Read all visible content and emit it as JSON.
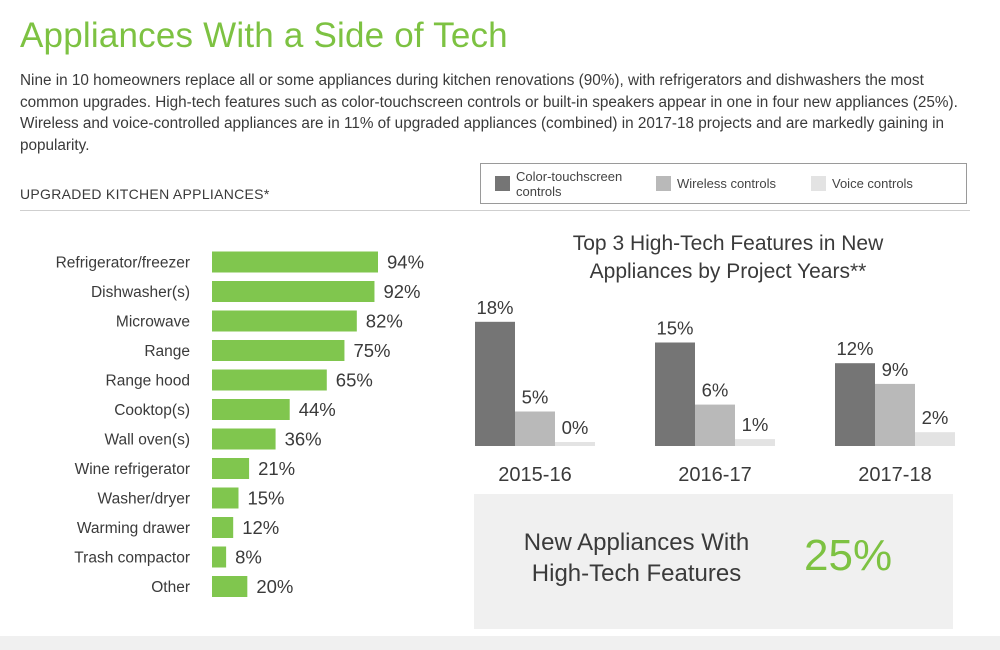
{
  "title": "Appliances With a Side of Tech",
  "intro": "Nine in 10 homeowners replace all or some appliances during kitchen renovations (90%), with refrigerators and dishwashers the most common upgrades. High-tech features such as color-touchscreen controls or built-in speakers appear in one in four new appliances (25%). Wireless and voice-controlled appliances are in 11% of upgraded appliances (combined) in 2017-18 projects and are markedly gaining in popularity.",
  "section_label": "UPGRADED KITCHEN APPLIANCES*",
  "legend": [
    {
      "label": "Color-touchscreen controls",
      "color": "#757575"
    },
    {
      "label": "Wireless controls",
      "color": "#b9b9b9"
    },
    {
      "label": "Voice controls",
      "color": "#e3e3e3"
    }
  ],
  "callout": {
    "text": "New Appliances With High-Tech Features",
    "value": "25%"
  },
  "chart_data": [
    {
      "type": "bar",
      "orientation": "horizontal",
      "title": "UPGRADED KITCHEN APPLIANCES*",
      "categories": [
        "Refrigerator/freezer",
        "Dishwasher(s)",
        "Microwave",
        "Range",
        "Range hood",
        "Cooktop(s)",
        "Wall oven(s)",
        "Wine refrigerator",
        "Washer/dryer",
        "Warming drawer",
        "Trash compactor",
        "Other"
      ],
      "values": [
        94,
        92,
        82,
        75,
        65,
        44,
        36,
        21,
        15,
        12,
        8,
        20
      ],
      "value_labels": [
        "94%",
        "92%",
        "82%",
        "75%",
        "65%",
        "44%",
        "36%",
        "21%",
        "15%",
        "12%",
        "8%",
        "20%"
      ],
      "color": "#80c64e",
      "unit": "%"
    },
    {
      "type": "bar",
      "title": "Top 3 High-Tech Features in New Appliances by Project Years**",
      "categories": [
        "2015-16",
        "2016-17",
        "2017-18"
      ],
      "series": [
        {
          "name": "Color-touchscreen controls",
          "color": "#757575",
          "values": [
            18,
            15,
            12
          ],
          "value_labels": [
            "18%",
            "15%",
            "12%"
          ]
        },
        {
          "name": "Wireless controls",
          "color": "#b9b9b9",
          "values": [
            5,
            6,
            9
          ],
          "value_labels": [
            "5%",
            "6%",
            "9%"
          ]
        },
        {
          "name": "Voice controls",
          "color": "#e3e3e3",
          "values": [
            0,
            1,
            2
          ],
          "value_labels": [
            "0%",
            "1%",
            "2%"
          ]
        }
      ],
      "unit": "%"
    }
  ]
}
